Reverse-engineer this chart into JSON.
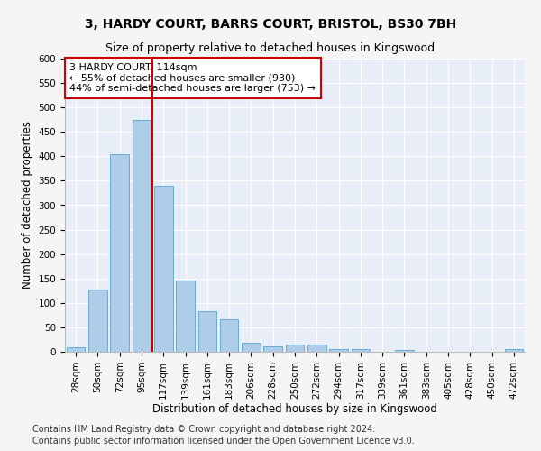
{
  "title_line1": "3, HARDY COURT, BARRS COURT, BRISTOL, BS30 7BH",
  "title_line2": "Size of property relative to detached houses in Kingswood",
  "xlabel": "Distribution of detached houses by size in Kingswood",
  "ylabel": "Number of detached properties",
  "bar_color": "#aecde8",
  "bar_edge_color": "#6aaad4",
  "categories": [
    "28sqm",
    "50sqm",
    "72sqm",
    "95sqm",
    "117sqm",
    "139sqm",
    "161sqm",
    "183sqm",
    "206sqm",
    "228sqm",
    "250sqm",
    "272sqm",
    "294sqm",
    "317sqm",
    "339sqm",
    "361sqm",
    "383sqm",
    "405sqm",
    "428sqm",
    "450sqm",
    "472sqm"
  ],
  "values": [
    9,
    127,
    405,
    475,
    340,
    145,
    84,
    67,
    19,
    11,
    14,
    14,
    6,
    6,
    0,
    4,
    0,
    0,
    0,
    0,
    5
  ],
  "vline_position": 3.5,
  "vline_color": "#cc0000",
  "annotation_text": "3 HARDY COURT: 114sqm\n← 55% of detached houses are smaller (930)\n44% of semi-detached houses are larger (753) →",
  "annotation_box_color": "#ffffff",
  "annotation_box_edge": "#cc0000",
  "ylim": [
    0,
    600
  ],
  "yticks": [
    0,
    50,
    100,
    150,
    200,
    250,
    300,
    350,
    400,
    450,
    500,
    550,
    600
  ],
  "footer_line1": "Contains HM Land Registry data © Crown copyright and database right 2024.",
  "footer_line2": "Contains public sector information licensed under the Open Government Licence v3.0.",
  "background_color": "#e8eef8",
  "grid_color": "#ffffff",
  "fig_background": "#f5f5f5",
  "title_fontsize": 10,
  "subtitle_fontsize": 9,
  "axis_label_fontsize": 8.5,
  "tick_fontsize": 7.5,
  "annotation_fontsize": 8,
  "footer_fontsize": 7
}
